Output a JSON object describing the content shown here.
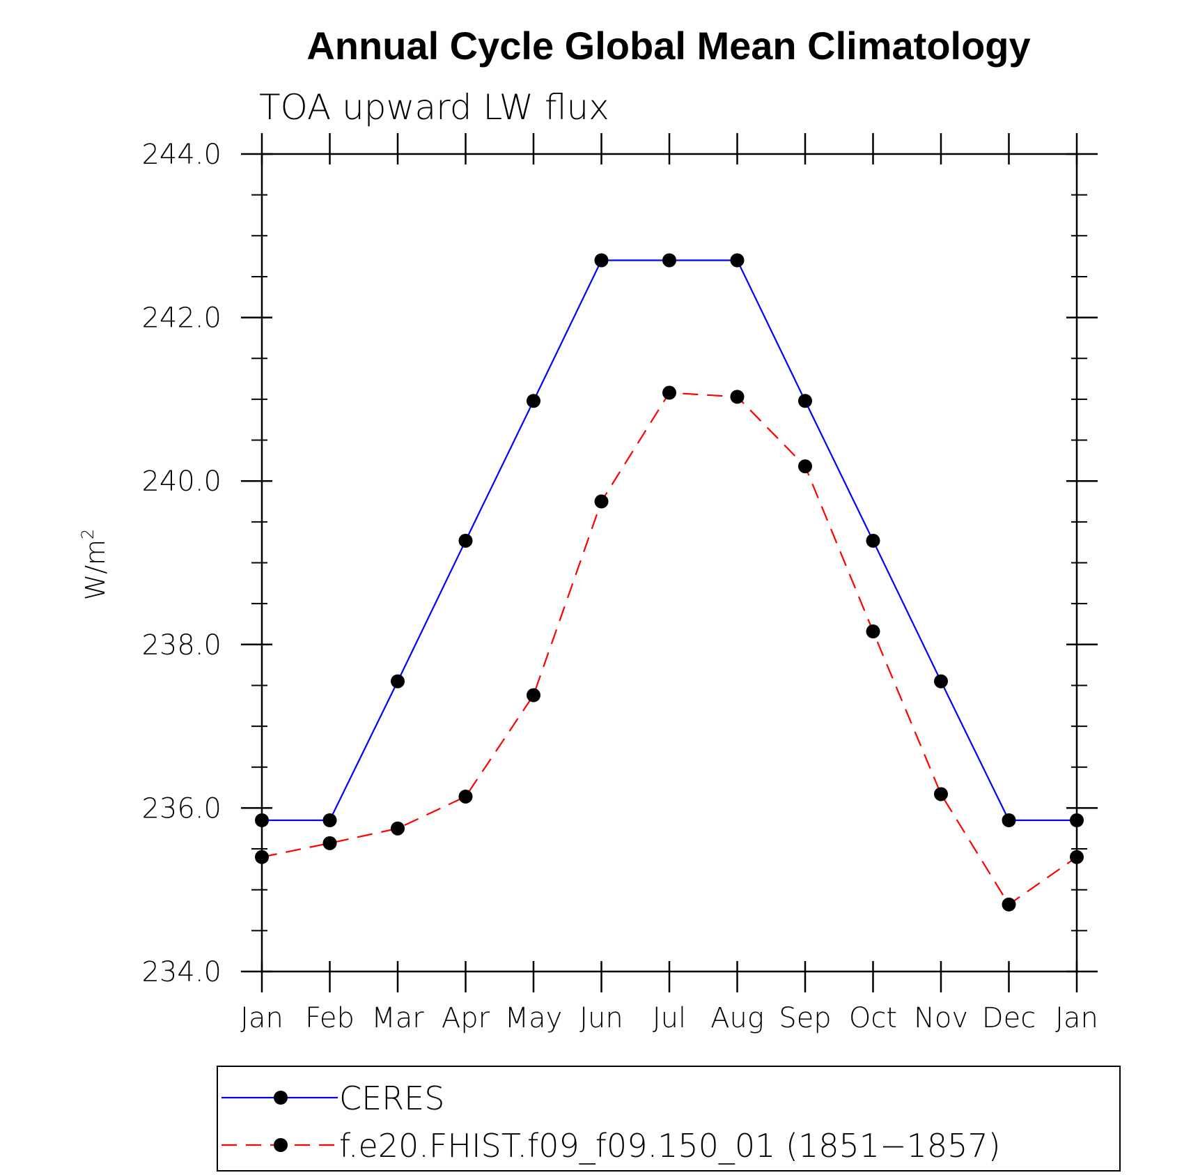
{
  "chart_data": {
    "type": "line",
    "title": "Annual Cycle Global Mean Climatology",
    "subtitle": "TOA upward LW flux",
    "ylabel": "W/m",
    "ylabel_sup": "2",
    "xlabel": "",
    "categories": [
      "Jan",
      "Feb",
      "Mar",
      "Apr",
      "May",
      "Jun",
      "Jul",
      "Aug",
      "Sep",
      "Oct",
      "Nov",
      "Dec",
      "Jan"
    ],
    "ylim": [
      234.0,
      244.0
    ],
    "yticks": [
      "234.0",
      "236.0",
      "238.0",
      "240.0",
      "242.0",
      "244.0"
    ],
    "ytick_values": [
      234,
      236,
      238,
      240,
      242,
      244
    ],
    "grid": false,
    "legend_position": "bottom",
    "series": [
      {
        "name": "CERES",
        "color": "#0000ff",
        "line_style": "solid",
        "marker": "filled-circle",
        "values": [
          235.85,
          235.85,
          237.55,
          239.27,
          240.98,
          242.7,
          242.7,
          242.7,
          240.98,
          239.27,
          237.55,
          235.85,
          235.85
        ]
      },
      {
        "name": "f.e20.FHIST.f09_f09.150_01 (1851−1857)",
        "color": "#ff0000",
        "line_style": "dashed",
        "marker": "filled-circle",
        "values": [
          235.4,
          235.57,
          235.75,
          236.14,
          237.38,
          239.75,
          241.08,
          241.03,
          240.18,
          238.16,
          236.17,
          234.82,
          235.4
        ]
      }
    ]
  }
}
